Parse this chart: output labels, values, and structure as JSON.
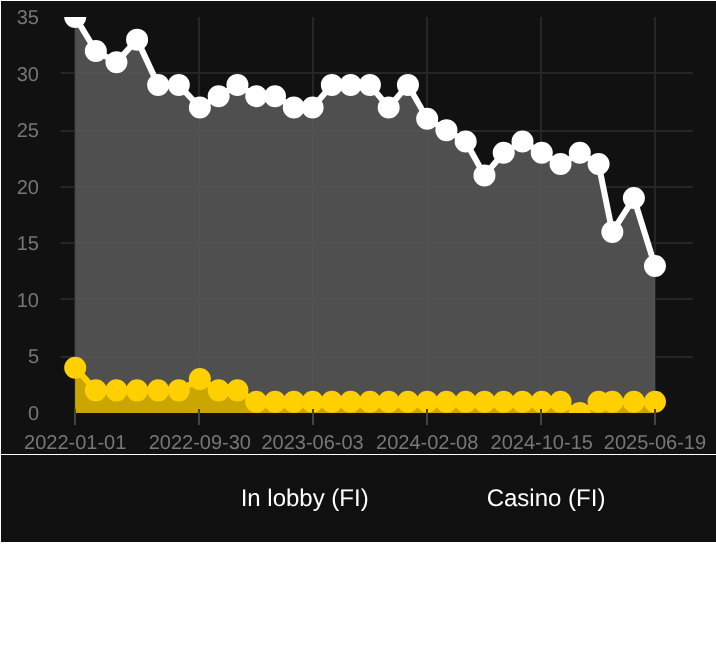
{
  "chart_data": {
    "type": "area",
    "x": [
      "2022-01-01",
      "2022-02-15",
      "2022-04-01",
      "2022-05-16",
      "2022-07-01",
      "2022-08-15",
      "2022-09-30",
      "2022-11-10",
      "2022-12-21",
      "2023-01-31",
      "2023-03-13",
      "2023-04-23",
      "2023-06-03",
      "2023-07-15",
      "2023-08-25",
      "2023-10-06",
      "2023-11-16",
      "2023-12-28",
      "2024-02-08",
      "2024-03-21",
      "2024-05-02",
      "2024-06-12",
      "2024-07-24",
      "2024-09-03",
      "2024-10-15",
      "2024-11-25",
      "2025-01-06",
      "2025-02-16",
      "2025-03-18",
      "2025-05-04",
      "2025-06-19"
    ],
    "series": [
      {
        "name": "In lobby (FI)",
        "color": "#ffd000",
        "values": [
          4,
          2,
          2,
          2,
          2,
          2,
          3,
          2,
          2,
          1,
          1,
          1,
          1,
          1,
          1,
          1,
          1,
          1,
          1,
          1,
          1,
          1,
          1,
          1,
          1,
          1,
          0,
          1,
          1,
          1,
          1
        ]
      },
      {
        "name": "Casino (FI)",
        "color": "#ffffff",
        "values": [
          35,
          32,
          31,
          33,
          29,
          29,
          27,
          28,
          29,
          28,
          28,
          27,
          27,
          29,
          29,
          29,
          27,
          29,
          26,
          25,
          24,
          21,
          23,
          24,
          23,
          22,
          23,
          22,
          16,
          19,
          13
        ]
      }
    ],
    "xlim": [
      "2021-12-01",
      "2025-09-10"
    ],
    "xticks": [
      "2022-01-01",
      "2022-09-30",
      "2023-06-03",
      "2024-02-08",
      "2024-10-15",
      "2025-06-19"
    ],
    "ylim": [
      0,
      35
    ],
    "yticks": [
      0,
      5,
      10,
      15,
      20,
      25,
      30,
      35
    ],
    "grid": true,
    "legend": "bottom",
    "marker": "circle",
    "line_style": "solid"
  }
}
